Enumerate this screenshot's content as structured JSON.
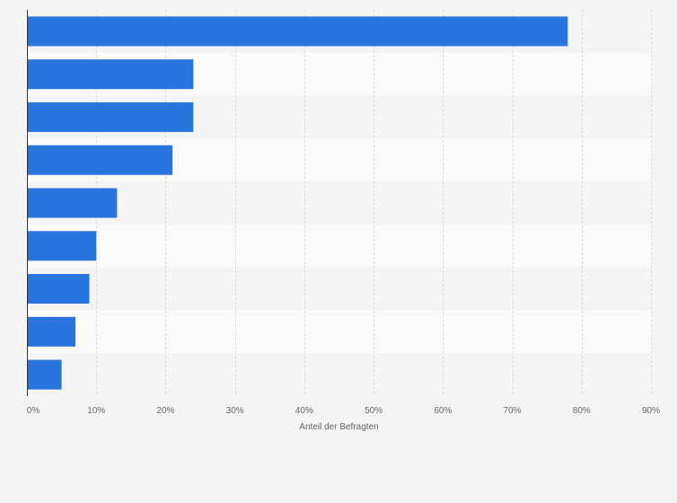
{
  "chart_data": {
    "type": "bar",
    "orientation": "horizontal",
    "categories": [
      "",
      "",
      "",
      "",
      "",
      "",
      "",
      "",
      ""
    ],
    "values": [
      78,
      24,
      24,
      21,
      13,
      10,
      9,
      7,
      5
    ],
    "title": "",
    "xlabel": "Anteil der Befragten",
    "ylabel": "",
    "xlim": [
      0,
      90
    ],
    "xticks": [
      0,
      10,
      20,
      30,
      40,
      50,
      60,
      70,
      80,
      90
    ],
    "xtick_labels": [
      "0%",
      "10%",
      "20%",
      "30%",
      "40%",
      "50%",
      "60%",
      "70%",
      "80%",
      "90%"
    ],
    "grid": true,
    "legend": "none",
    "bar_color": "#2876dd",
    "band_colors": [
      "#f4f4f4",
      "#fafafa"
    ]
  }
}
